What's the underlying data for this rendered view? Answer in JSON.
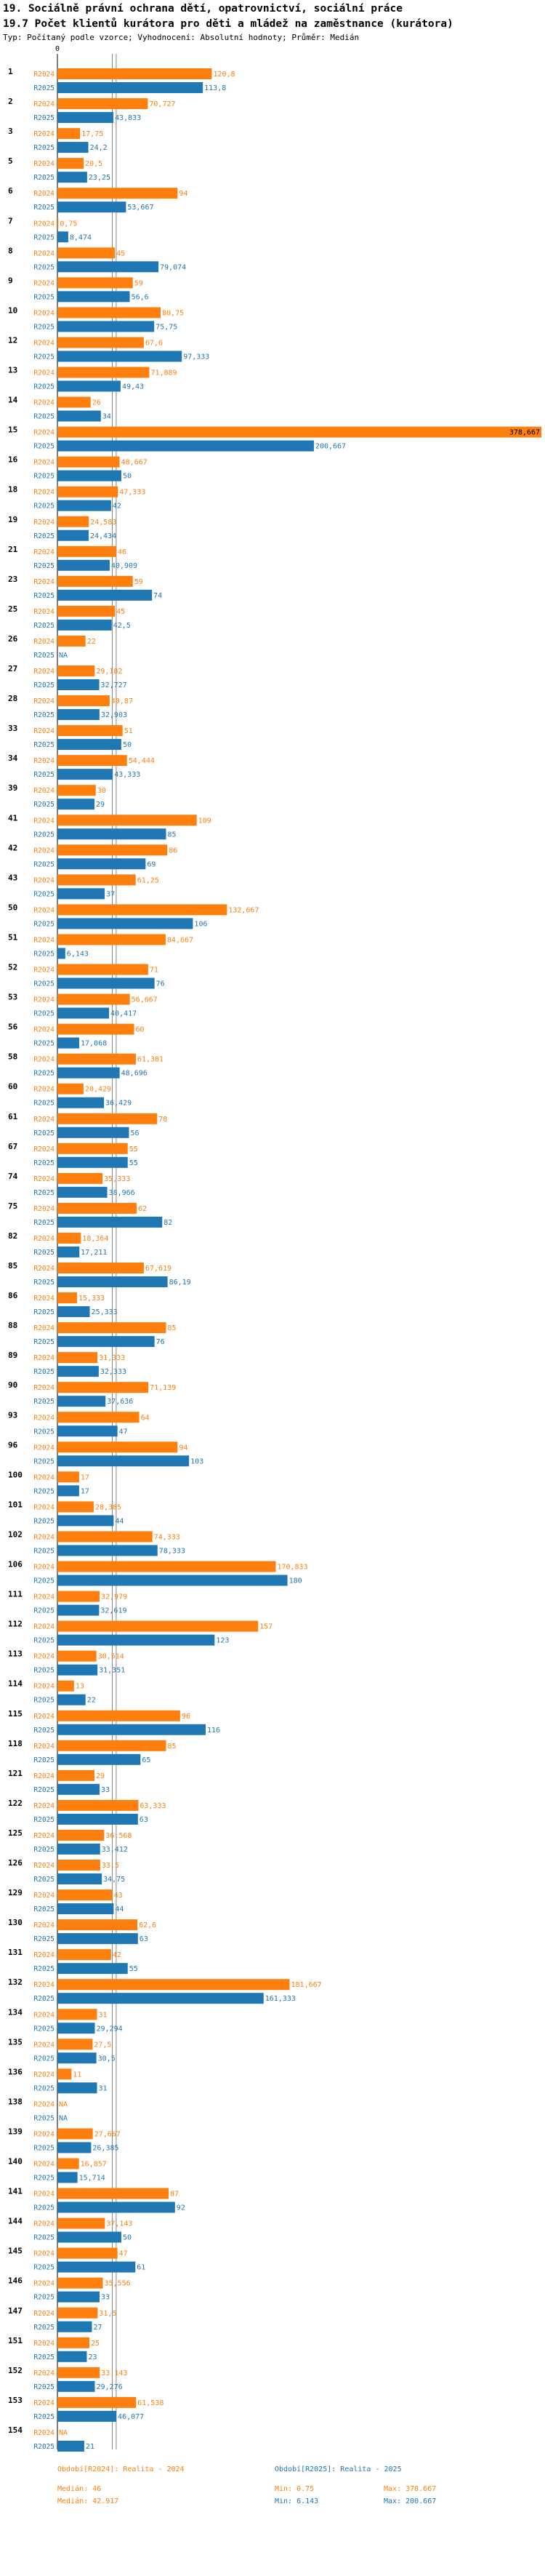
{
  "header": {
    "title1": "19. Sociálně právní ochrana dětí, opatrovnictví, sociální práce",
    "title2": "19.7 Počet klientů kurátora pro děti a mládež na zaměstnance (kurátora)",
    "subtitle": "Typ: Počítaný podle vzorce; Vyhodnocení: Absolutní hodnoty; Průměr: Medián"
  },
  "colors": {
    "r2024": "#ff7f0e",
    "r2025": "#1f77b4",
    "grid": "#888888"
  },
  "footer": {
    "left": [
      {
        "label": "Období[R2024]: Realita - 2024",
        "color": "orange"
      },
      {
        "label": "Medián: 46",
        "color": "orange"
      },
      {
        "label": "Medián: 42.917",
        "color": "orange"
      }
    ],
    "mid": [
      {
        "label": "Období[R2025]: Realita - 2025",
        "color": "blue"
      },
      {
        "label": "Min: 0.75",
        "color": "orange"
      },
      {
        "label": "Min: 6.143",
        "color": "blue"
      }
    ],
    "right": [
      {
        "label": "Max: 378.667",
        "color": "orange"
      },
      {
        "label": "Max: 200.667",
        "color": "blue"
      }
    ]
  },
  "chart_data": {
    "type": "bar",
    "orientation": "horizontal",
    "title": "19.7 Počet klientů kurátora pro děti a mládež na zaměstnance (kurátora)",
    "x_axis_tick": "0",
    "xlim": [
      0,
      378.667
    ],
    "reference_lines": [
      {
        "label": "Medián: 46",
        "value": 46
      },
      {
        "label": "Medián: 42.917",
        "value": 42.917
      }
    ],
    "series_names": [
      "R2024",
      "R2025"
    ],
    "categories": [
      {
        "id": "1",
        "r2024": 120.8,
        "r2024_label": "120,8",
        "r2025": 113.8,
        "r2025_label": "113,8"
      },
      {
        "id": "2",
        "r2024": 70.727,
        "r2024_label": "70,727",
        "r2025": 43.833,
        "r2025_label": "43,833"
      },
      {
        "id": "3",
        "r2024": 17.75,
        "r2024_label": "17,75",
        "r2025": 24.2,
        "r2025_label": "24,2"
      },
      {
        "id": "5",
        "r2024": 20.5,
        "r2024_label": "20,5",
        "r2025": 23.25,
        "r2025_label": "23,25"
      },
      {
        "id": "6",
        "r2024": 94,
        "r2024_label": "94",
        "r2025": 53.667,
        "r2025_label": "53,667"
      },
      {
        "id": "7",
        "r2024": 0.75,
        "r2024_label": "0,75",
        "r2025": 8.474,
        "r2025_label": "8,474"
      },
      {
        "id": "8",
        "r2024": 45,
        "r2024_label": "45",
        "r2025": 79.074,
        "r2025_label": "79,074"
      },
      {
        "id": "9",
        "r2024": 59,
        "r2024_label": "59",
        "r2025": 56.6,
        "r2025_label": "56,6"
      },
      {
        "id": "10",
        "r2024": 80.75,
        "r2024_label": "80,75",
        "r2025": 75.75,
        "r2025_label": "75,75"
      },
      {
        "id": "12",
        "r2024": 67.6,
        "r2024_label": "67,6",
        "r2025": 97.333,
        "r2025_label": "97,333"
      },
      {
        "id": "13",
        "r2024": 71.889,
        "r2024_label": "71,889",
        "r2025": 49.43,
        "r2025_label": "49,43"
      },
      {
        "id": "14",
        "r2024": 26,
        "r2024_label": "26",
        "r2025": 34,
        "r2025_label": "34"
      },
      {
        "id": "15",
        "r2024": 378.667,
        "r2024_label": "378,667",
        "r2025": 200.667,
        "r2025_label": "200,667"
      },
      {
        "id": "16",
        "r2024": 48.667,
        "r2024_label": "48,667",
        "r2025": 50,
        "r2025_label": "50"
      },
      {
        "id": "18",
        "r2024": 47.333,
        "r2024_label": "47,333",
        "r2025": 42,
        "r2025_label": "42"
      },
      {
        "id": "19",
        "r2024": 24.583,
        "r2024_label": "24,583",
        "r2025": 24.434,
        "r2025_label": "24,434"
      },
      {
        "id": "21",
        "r2024": 46,
        "r2024_label": "46",
        "r2025": 40.909,
        "r2025_label": "40,909"
      },
      {
        "id": "23",
        "r2024": 59,
        "r2024_label": "59",
        "r2025": 74,
        "r2025_label": "74"
      },
      {
        "id": "25",
        "r2024": 45,
        "r2024_label": "45",
        "r2025": 42.5,
        "r2025_label": "42,5"
      },
      {
        "id": "26",
        "r2024": 22,
        "r2024_label": "22",
        "r2025": null,
        "r2025_label": "NA"
      },
      {
        "id": "27",
        "r2024": 29.182,
        "r2024_label": "29,182",
        "r2025": 32.727,
        "r2025_label": "32,727"
      },
      {
        "id": "28",
        "r2024": 40.87,
        "r2024_label": "40,87",
        "r2025": 32.903,
        "r2025_label": "32,903"
      },
      {
        "id": "33",
        "r2024": 51,
        "r2024_label": "51",
        "r2025": 50,
        "r2025_label": "50"
      },
      {
        "id": "34",
        "r2024": 54.444,
        "r2024_label": "54,444",
        "r2025": 43.333,
        "r2025_label": "43,333"
      },
      {
        "id": "39",
        "r2024": 30,
        "r2024_label": "30",
        "r2025": 29,
        "r2025_label": "29"
      },
      {
        "id": "41",
        "r2024": 109,
        "r2024_label": "109",
        "r2025": 85,
        "r2025_label": "85"
      },
      {
        "id": "42",
        "r2024": 86,
        "r2024_label": "86",
        "r2025": 69,
        "r2025_label": "69"
      },
      {
        "id": "43",
        "r2024": 61.25,
        "r2024_label": "61,25",
        "r2025": 37,
        "r2025_label": "37"
      },
      {
        "id": "50",
        "r2024": 132.667,
        "r2024_label": "132,667",
        "r2025": 106,
        "r2025_label": "106"
      },
      {
        "id": "51",
        "r2024": 84.667,
        "r2024_label": "84,667",
        "r2025": 6.143,
        "r2025_label": "6,143"
      },
      {
        "id": "52",
        "r2024": 71,
        "r2024_label": "71",
        "r2025": 76,
        "r2025_label": "76"
      },
      {
        "id": "53",
        "r2024": 56.667,
        "r2024_label": "56,667",
        "r2025": 40.417,
        "r2025_label": "40,417"
      },
      {
        "id": "56",
        "r2024": 60,
        "r2024_label": "60",
        "r2025": 17.068,
        "r2025_label": "17,068"
      },
      {
        "id": "58",
        "r2024": 61.381,
        "r2024_label": "61,381",
        "r2025": 48.696,
        "r2025_label": "48,696"
      },
      {
        "id": "60",
        "r2024": 20.429,
        "r2024_label": "20,429",
        "r2025": 36.429,
        "r2025_label": "36,429"
      },
      {
        "id": "61",
        "r2024": 78,
        "r2024_label": "78",
        "r2025": 56,
        "r2025_label": "56"
      },
      {
        "id": "67",
        "r2024": 55,
        "r2024_label": "55",
        "r2025": 55,
        "r2025_label": "55"
      },
      {
        "id": "74",
        "r2024": 35.333,
        "r2024_label": "35,333",
        "r2025": 38.966,
        "r2025_label": "38,966"
      },
      {
        "id": "75",
        "r2024": 62,
        "r2024_label": "62",
        "r2025": 82,
        "r2025_label": "82"
      },
      {
        "id": "82",
        "r2024": 18.364,
        "r2024_label": "18,364",
        "r2025": 17.211,
        "r2025_label": "17,211"
      },
      {
        "id": "85",
        "r2024": 67.619,
        "r2024_label": "67,619",
        "r2025": 86.19,
        "r2025_label": "86,19"
      },
      {
        "id": "86",
        "r2024": 15.333,
        "r2024_label": "15,333",
        "r2025": 25.333,
        "r2025_label": "25,333"
      },
      {
        "id": "88",
        "r2024": 85,
        "r2024_label": "85",
        "r2025": 76,
        "r2025_label": "76"
      },
      {
        "id": "89",
        "r2024": 31.333,
        "r2024_label": "31,333",
        "r2025": 32.333,
        "r2025_label": "32,333"
      },
      {
        "id": "90",
        "r2024": 71.139,
        "r2024_label": "71,139",
        "r2025": 37.636,
        "r2025_label": "37,636"
      },
      {
        "id": "93",
        "r2024": 64,
        "r2024_label": "64",
        "r2025": 47,
        "r2025_label": "47"
      },
      {
        "id": "96",
        "r2024": 94,
        "r2024_label": "94",
        "r2025": 103,
        "r2025_label": "103"
      },
      {
        "id": "100",
        "r2024": 17,
        "r2024_label": "17",
        "r2025": 17,
        "r2025_label": "17"
      },
      {
        "id": "101",
        "r2024": 28.385,
        "r2024_label": "28,385",
        "r2025": 44,
        "r2025_label": "44"
      },
      {
        "id": "102",
        "r2024": 74.333,
        "r2024_label": "74,333",
        "r2025": 78.333,
        "r2025_label": "78,333"
      },
      {
        "id": "106",
        "r2024": 170.833,
        "r2024_label": "170,833",
        "r2025": 180,
        "r2025_label": "180"
      },
      {
        "id": "111",
        "r2024": 32.979,
        "r2024_label": "32,979",
        "r2025": 32.619,
        "r2025_label": "32,619"
      },
      {
        "id": "112",
        "r2024": 157,
        "r2024_label": "157",
        "r2025": 123,
        "r2025_label": "123"
      },
      {
        "id": "113",
        "r2024": 30.514,
        "r2024_label": "30,514",
        "r2025": 31.351,
        "r2025_label": "31,351"
      },
      {
        "id": "114",
        "r2024": 13,
        "r2024_label": "13",
        "r2025": 22,
        "r2025_label": "22"
      },
      {
        "id": "115",
        "r2024": 96,
        "r2024_label": "96",
        "r2025": 116,
        "r2025_label": "116"
      },
      {
        "id": "118",
        "r2024": 85,
        "r2024_label": "85",
        "r2025": 65,
        "r2025_label": "65"
      },
      {
        "id": "121",
        "r2024": 29,
        "r2024_label": "29",
        "r2025": 33,
        "r2025_label": "33"
      },
      {
        "id": "122",
        "r2024": 63.333,
        "r2024_label": "63,333",
        "r2025": 63,
        "r2025_label": "63"
      },
      {
        "id": "125",
        "r2024": 36.568,
        "r2024_label": "36,568",
        "r2025": 33.412,
        "r2025_label": "33,412"
      },
      {
        "id": "126",
        "r2024": 33.5,
        "r2024_label": "33,5",
        "r2025": 34.75,
        "r2025_label": "34,75"
      },
      {
        "id": "129",
        "r2024": 43,
        "r2024_label": "43",
        "r2025": 44,
        "r2025_label": "44"
      },
      {
        "id": "130",
        "r2024": 62.6,
        "r2024_label": "62,6",
        "r2025": 63,
        "r2025_label": "63"
      },
      {
        "id": "131",
        "r2024": 42,
        "r2024_label": "42",
        "r2025": 55,
        "r2025_label": "55"
      },
      {
        "id": "132",
        "r2024": 181.667,
        "r2024_label": "181,667",
        "r2025": 161.333,
        "r2025_label": "161,333"
      },
      {
        "id": "134",
        "r2024": 31,
        "r2024_label": "31",
        "r2025": 29.294,
        "r2025_label": "29,294"
      },
      {
        "id": "135",
        "r2024": 27.5,
        "r2024_label": "27,5",
        "r2025": 30.5,
        "r2025_label": "30,5"
      },
      {
        "id": "136",
        "r2024": 11,
        "r2024_label": "11",
        "r2025": 31,
        "r2025_label": "31"
      },
      {
        "id": "138",
        "r2024": null,
        "r2024_label": "NA",
        "r2025": null,
        "r2025_label": "NA"
      },
      {
        "id": "139",
        "r2024": 27.667,
        "r2024_label": "27,667",
        "r2025": 26.385,
        "r2025_label": "26,385"
      },
      {
        "id": "140",
        "r2024": 16.857,
        "r2024_label": "16,857",
        "r2025": 15.714,
        "r2025_label": "15,714"
      },
      {
        "id": "141",
        "r2024": 87,
        "r2024_label": "87",
        "r2025": 92,
        "r2025_label": "92"
      },
      {
        "id": "144",
        "r2024": 37.143,
        "r2024_label": "37,143",
        "r2025": 50,
        "r2025_label": "50"
      },
      {
        "id": "145",
        "r2024": 47,
        "r2024_label": "47",
        "r2025": 61,
        "r2025_label": "61"
      },
      {
        "id": "146",
        "r2024": 35.556,
        "r2024_label": "35,556",
        "r2025": 33,
        "r2025_label": "33"
      },
      {
        "id": "147",
        "r2024": 31.5,
        "r2024_label": "31,5",
        "r2025": 27,
        "r2025_label": "27"
      },
      {
        "id": "151",
        "r2024": 25,
        "r2024_label": "25",
        "r2025": 23,
        "r2025_label": "23"
      },
      {
        "id": "152",
        "r2024": 33.143,
        "r2024_label": "33,143",
        "r2025": 29.276,
        "r2025_label": "29,276"
      },
      {
        "id": "153",
        "r2024": 61.538,
        "r2024_label": "61,538",
        "r2025": 46.077,
        "r2025_label": "46,077"
      },
      {
        "id": "154",
        "r2024": null,
        "r2024_label": "NA",
        "r2025": 21,
        "r2025_label": "21"
      }
    ]
  }
}
